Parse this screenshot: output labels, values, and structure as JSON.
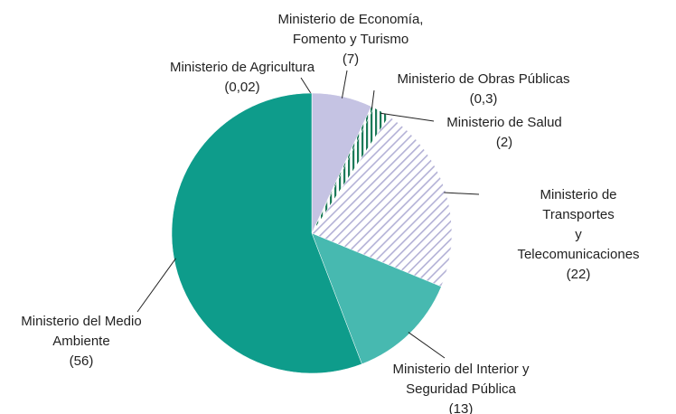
{
  "chart_data": {
    "type": "pie",
    "categories": [
      "Ministerio de Agricultura",
      "Ministerio de Economía,\nFomento y Turismo",
      "Ministerio de Obras Públicas",
      "Ministerio de Salud",
      "Ministerio de Transportes\ny Telecomunicaciones",
      "Ministerio del Interior y\nSeguridad Pública",
      "Ministerio del Medio\nAmbiente"
    ],
    "values": [
      0.02,
      7,
      0.3,
      2,
      22,
      13,
      56
    ],
    "value_labels": [
      "(0,02)",
      "(7)",
      "(0,3)",
      "(2)",
      "(22)",
      "(13)",
      "(56)"
    ],
    "colors": [
      "#0e9c8b",
      "#c5c3e3",
      "#1b7a58",
      "#1b7a58",
      "#b3b1d6",
      "#47b9b0",
      "#0e9c8b"
    ],
    "hatch": [
      "none",
      "none",
      "vertical",
      "vertical",
      "diagonal",
      "none",
      "none"
    ]
  }
}
